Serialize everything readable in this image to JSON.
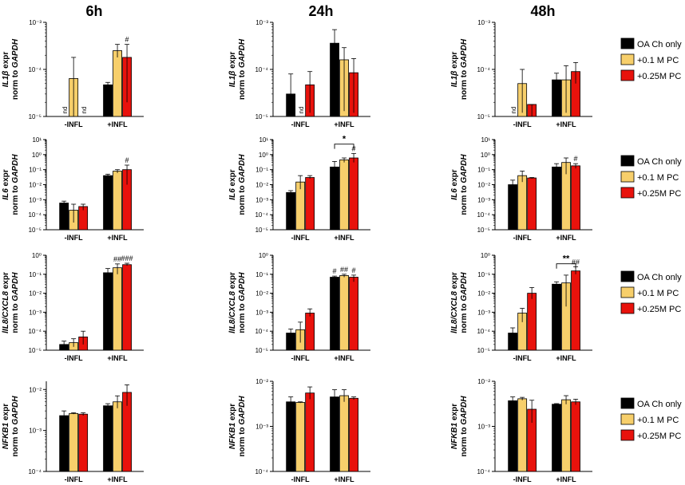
{
  "time_labels": [
    "6h",
    "24h",
    "48h"
  ],
  "categories": [
    "-INFL",
    "+INFL"
  ],
  "legend": {
    "items": [
      {
        "label": "OA Ch only",
        "color": "#000000"
      },
      {
        "label": "+0.1 M PC",
        "color": "#f7cf6b"
      },
      {
        "label": "+0.25M PC",
        "color": "#e8120c"
      }
    ]
  },
  "row_labels": [
    {
      "gene": "IL1β",
      "line1": "expr",
      "line2_prefix": "norm to ",
      "line2_gene": "GAPDH"
    },
    {
      "gene": "IL6",
      "line1": "expr",
      "line2_prefix": "norm to ",
      "line2_gene": "GAPDH"
    },
    {
      "gene": "lIL8/CXCL8",
      "line1": "expr",
      "line2_prefix": "norm to ",
      "line2_gene": "GAPDH"
    },
    {
      "gene": "NFKB1",
      "line1": "expr",
      "line2_prefix": "norm to ",
      "line2_gene": "GAPDH"
    }
  ],
  "chart_data": [
    {
      "type": "bar",
      "row": 0,
      "col": 0,
      "yscale": "log",
      "ylim_exp": [
        -5,
        -3
      ],
      "ticks": [
        {
          "exp": -5,
          "label": "10⁻⁵"
        },
        {
          "exp": -4,
          "label": "10⁻⁴"
        },
        {
          "exp": -3,
          "label": "10⁻³"
        }
      ],
      "series": [
        {
          "name": "OA Ch only",
          "values": [
            null,
            4.7e-05
          ],
          "err_hi": [
            null,
            5.3e-05
          ],
          "err_lo": [
            null,
            4.2e-05
          ]
        },
        {
          "name": "+0.1 M PC",
          "values": [
            6.4e-05,
            0.00025
          ],
          "err_hi": [
            0.00018,
            0.00034
          ],
          "err_lo": [
            1e-05,
            0.00018
          ]
        },
        {
          "name": "+0.25M PC",
          "values": [
            null,
            0.00018
          ],
          "err_hi": [
            null,
            0.00034
          ],
          "err_lo": [
            null,
            2e-05
          ]
        }
      ],
      "annotations": [
        {
          "group": 0,
          "series": 0,
          "text": "nd"
        },
        {
          "group": 0,
          "series": 2,
          "text": "nd"
        },
        {
          "group": 1,
          "series": 2,
          "text": "#"
        }
      ]
    },
    {
      "type": "bar",
      "row": 0,
      "col": 1,
      "yscale": "log",
      "ylim_exp": [
        -5,
        -3
      ],
      "ticks": [
        {
          "exp": -5,
          "label": "10⁻⁵"
        },
        {
          "exp": -4,
          "label": "10⁻⁴"
        },
        {
          "exp": -3,
          "label": "10⁻³"
        }
      ],
      "series": [
        {
          "name": "OA Ch only",
          "values": [
            3e-05,
            0.00036
          ],
          "err_hi": [
            8e-05,
            0.0007
          ],
          "err_lo": [
            1e-05,
            2e-05
          ]
        },
        {
          "name": "+0.1 M PC",
          "values": [
            null,
            0.00016
          ],
          "err_hi": [
            null,
            0.00029
          ],
          "err_lo": [
            null,
            1.3e-05
          ]
        },
        {
          "name": "+0.25M PC",
          "values": [
            4.7e-05,
            8.5e-05
          ],
          "err_hi": [
            9e-05,
            0.00017
          ],
          "err_lo": [
            1.2e-05,
            1.2e-05
          ]
        }
      ],
      "annotations": [
        {
          "group": 0,
          "series": 1,
          "text": "nd"
        }
      ]
    },
    {
      "type": "bar",
      "row": 0,
      "col": 2,
      "yscale": "log",
      "ylim_exp": [
        -5,
        -3
      ],
      "ticks": [
        {
          "exp": -5,
          "label": "10⁻⁵"
        },
        {
          "exp": -4,
          "label": "10⁻⁴"
        },
        {
          "exp": -3,
          "label": "10⁻³"
        }
      ],
      "series": [
        {
          "name": "OA Ch only",
          "values": [
            null,
            6e-05
          ],
          "err_hi": [
            null,
            8.3e-05
          ],
          "err_lo": [
            null,
            1.2e-05
          ]
        },
        {
          "name": "+0.1 M PC",
          "values": [
            5e-05,
            6e-05
          ],
          "err_hi": [
            0.0001,
            0.00012
          ],
          "err_lo": [
            1.2e-05,
            1.2e-05
          ]
        },
        {
          "name": "+0.25M PC",
          "values": [
            1.8e-05,
            9e-05
          ],
          "err_hi": [
            1.8e-05,
            0.00014
          ],
          "err_lo": [
            1e-05,
            5e-05
          ]
        }
      ],
      "annotations": [
        {
          "group": 0,
          "series": 0,
          "text": "nd"
        }
      ]
    },
    {
      "type": "bar",
      "row": 1,
      "col": 0,
      "yscale": "log",
      "ylim_exp": [
        -5,
        1
      ],
      "ticks": [
        {
          "exp": -5,
          "label": "10⁻⁵"
        },
        {
          "exp": -4,
          "label": "10⁻⁴"
        },
        {
          "exp": -3,
          "label": "10⁻³"
        },
        {
          "exp": -2,
          "label": "10⁻²"
        },
        {
          "exp": -1,
          "label": "10⁻¹"
        },
        {
          "exp": 0,
          "label": "10⁰"
        },
        {
          "exp": 1,
          "label": "10¹"
        }
      ],
      "series": [
        {
          "name": "OA Ch only",
          "values": [
            0.0006,
            0.04
          ],
          "err_hi": [
            0.0008,
            0.05
          ],
          "err_lo": [
            0.0004,
            0.03
          ]
        },
        {
          "name": "+0.1 M PC",
          "values": [
            0.0002,
            0.08
          ],
          "err_hi": [
            0.0005,
            0.1
          ],
          "err_lo": [
            3e-05,
            0.06
          ]
        },
        {
          "name": "+0.25M PC",
          "values": [
            0.00035,
            0.1
          ],
          "err_hi": [
            0.0005,
            0.2
          ],
          "err_lo": [
            0.0002,
            0.01
          ]
        }
      ],
      "annotations": [
        {
          "group": 1,
          "series": 2,
          "text": "#"
        }
      ]
    },
    {
      "type": "bar",
      "row": 1,
      "col": 1,
      "yscale": "log",
      "ylim_exp": [
        -5,
        1
      ],
      "ticks": [
        {
          "exp": -5,
          "label": "10⁻⁵"
        },
        {
          "exp": -4,
          "label": "10⁻⁴"
        },
        {
          "exp": -3,
          "label": "10⁻³"
        },
        {
          "exp": -2,
          "label": "10⁻²"
        },
        {
          "exp": -1,
          "label": "10⁻¹"
        },
        {
          "exp": 0,
          "label": "10⁰"
        },
        {
          "exp": 1,
          "label": "10¹"
        }
      ],
      "series": [
        {
          "name": "OA Ch only",
          "values": [
            0.003,
            0.15
          ],
          "err_hi": [
            0.004,
            0.35
          ],
          "err_lo": [
            0.0022,
            0.06
          ]
        },
        {
          "name": "+0.1 M PC",
          "values": [
            0.015,
            0.45
          ],
          "err_hi": [
            0.04,
            0.6
          ],
          "err_lo": [
            0.005,
            0.3
          ]
        },
        {
          "name": "+0.25M PC",
          "values": [
            0.03,
            0.6
          ],
          "err_hi": [
            0.04,
            1.2
          ],
          "err_lo": [
            0.025,
            0.3
          ]
        }
      ],
      "annotations": [
        {
          "group": 1,
          "series": 2,
          "text": "#"
        }
      ],
      "brackets": [
        {
          "from": {
            "group": 1,
            "series": 0
          },
          "to": {
            "group": 1,
            "series": 2
          },
          "text": "*",
          "at_exp": 0.7
        }
      ]
    },
    {
      "type": "bar",
      "row": 1,
      "col": 2,
      "yscale": "log",
      "ylim_exp": [
        -5,
        1
      ],
      "ticks": [
        {
          "exp": -5,
          "label": "10⁻⁵"
        },
        {
          "exp": -4,
          "label": "10⁻⁴"
        },
        {
          "exp": -3,
          "label": "10⁻³"
        },
        {
          "exp": -2,
          "label": "10⁻²"
        },
        {
          "exp": -1,
          "label": "10⁻¹"
        },
        {
          "exp": 0,
          "label": "10⁰"
        },
        {
          "exp": 1,
          "label": "10¹"
        }
      ],
      "series": [
        {
          "name": "OA Ch only",
          "values": [
            0.01,
            0.15
          ],
          "err_hi": [
            0.02,
            0.25
          ],
          "err_lo": [
            0.005,
            0.1
          ]
        },
        {
          "name": "+0.1 M PC",
          "values": [
            0.04,
            0.3
          ],
          "err_hi": [
            0.08,
            0.6
          ],
          "err_lo": [
            0.015,
            0.05
          ]
        },
        {
          "name": "+0.25M PC",
          "values": [
            0.028,
            0.18
          ],
          "err_hi": [
            0.03,
            0.25
          ],
          "err_lo": [
            0.025,
            0.12
          ]
        }
      ],
      "annotations": [
        {
          "group": 1,
          "series": 2,
          "text": "#"
        }
      ]
    },
    {
      "type": "bar",
      "row": 2,
      "col": 0,
      "yscale": "log",
      "ylim_exp": [
        -5,
        0
      ],
      "ticks": [
        {
          "exp": -5,
          "label": "10⁻⁵"
        },
        {
          "exp": -4,
          "label": "10⁻⁴"
        },
        {
          "exp": -3,
          "label": "10⁻³"
        },
        {
          "exp": -2,
          "label": "10⁻²"
        },
        {
          "exp": -1,
          "label": "10⁻¹"
        },
        {
          "exp": 0,
          "label": "10⁰"
        }
      ],
      "series": [
        {
          "name": "OA Ch only",
          "values": [
            2e-05,
            0.12
          ],
          "err_hi": [
            3e-05,
            0.2
          ],
          "err_lo": [
            1.4e-05,
            0.06
          ]
        },
        {
          "name": "+0.1 M PC",
          "values": [
            2.5e-05,
            0.22
          ],
          "err_hi": [
            4e-05,
            0.35
          ],
          "err_lo": [
            1.5e-05,
            0.1
          ]
        },
        {
          "name": "+0.25M PC",
          "values": [
            5e-05,
            0.32
          ],
          "err_hi": [
            0.0001,
            0.38
          ],
          "err_lo": [
            2e-05,
            0.28
          ]
        }
      ],
      "annotations": [
        {
          "group": 1,
          "series": 1,
          "text": "##"
        },
        {
          "group": 1,
          "series": 2,
          "text": "###"
        }
      ]
    },
    {
      "type": "bar",
      "row": 2,
      "col": 1,
      "yscale": "log",
      "ylim_exp": [
        -5,
        0
      ],
      "ticks": [
        {
          "exp": -5,
          "label": "10⁻⁵"
        },
        {
          "exp": -4,
          "label": "10⁻⁴"
        },
        {
          "exp": -3,
          "label": "10⁻³"
        },
        {
          "exp": -2,
          "label": "10⁻²"
        },
        {
          "exp": -1,
          "label": "10⁻¹"
        },
        {
          "exp": 0,
          "label": "10⁰"
        }
      ],
      "series": [
        {
          "name": "OA Ch only",
          "values": [
            8e-05,
            0.07
          ],
          "err_hi": [
            0.00013,
            0.08
          ],
          "err_lo": [
            5e-05,
            0.06
          ]
        },
        {
          "name": "+0.1 M PC",
          "values": [
            0.00012,
            0.085
          ],
          "err_hi": [
            0.0003,
            0.1
          ],
          "err_lo": [
            2.5e-05,
            0.07
          ]
        },
        {
          "name": "+0.25M PC",
          "values": [
            0.0009,
            0.07
          ],
          "err_hi": [
            0.0015,
            0.09
          ],
          "err_lo": [
            0.0006,
            0.04
          ]
        }
      ],
      "annotations": [
        {
          "group": 1,
          "series": 0,
          "text": "#"
        },
        {
          "group": 1,
          "series": 1,
          "text": "##"
        },
        {
          "group": 1,
          "series": 2,
          "text": "#"
        }
      ]
    },
    {
      "type": "bar",
      "row": 2,
      "col": 2,
      "yscale": "log",
      "ylim_exp": [
        -5,
        0
      ],
      "ticks": [
        {
          "exp": -5,
          "label": "10⁻⁵"
        },
        {
          "exp": -4,
          "label": "10⁻⁴"
        },
        {
          "exp": -3,
          "label": "10⁻³"
        },
        {
          "exp": -2,
          "label": "10⁻²"
        },
        {
          "exp": -1,
          "label": "10⁻¹"
        },
        {
          "exp": 0,
          "label": "10⁰"
        }
      ],
      "series": [
        {
          "name": "OA Ch only",
          "values": [
            8e-05,
            0.03
          ],
          "err_hi": [
            0.00015,
            0.04
          ],
          "err_lo": [
            4e-05,
            0.02
          ]
        },
        {
          "name": "+0.1 M PC",
          "values": [
            0.0009,
            0.035
          ],
          "err_hi": [
            0.0016,
            0.09
          ],
          "err_lo": [
            0.0003,
            0.002
          ]
        },
        {
          "name": "+0.25M PC",
          "values": [
            0.01,
            0.15
          ],
          "err_hi": [
            0.02,
            0.25
          ],
          "err_lo": [
            0.005,
            0.1
          ]
        }
      ],
      "annotations": [
        {
          "group": 1,
          "series": 2,
          "text": "##"
        }
      ],
      "brackets": [
        {
          "from": {
            "group": 1,
            "series": 0
          },
          "to": {
            "group": 1,
            "series": 2
          },
          "text": "**",
          "at_exp": -0.45
        }
      ]
    },
    {
      "type": "bar",
      "row": 3,
      "col": 0,
      "yscale": "log",
      "ylim_exp": [
        -4,
        -1.8
      ],
      "ticks": [
        {
          "exp": -4,
          "label": "10⁻⁴"
        },
        {
          "exp": -3,
          "label": "10⁻³"
        },
        {
          "exp": -2,
          "label": "10⁻²"
        }
      ],
      "series": [
        {
          "name": "OA Ch only",
          "values": [
            0.0023,
            0.004
          ],
          "err_hi": [
            0.003,
            0.0045
          ],
          "err_lo": [
            0.0018,
            0.0036
          ]
        },
        {
          "name": "+0.1 M PC",
          "values": [
            0.0026,
            0.005
          ],
          "err_hi": [
            0.0027,
            0.007
          ],
          "err_lo": [
            0.0025,
            0.0035
          ]
        },
        {
          "name": "+0.25M PC",
          "values": [
            0.0025,
            0.0085
          ],
          "err_hi": [
            0.0027,
            0.013
          ],
          "err_lo": [
            0.0023,
            0.004
          ]
        }
      ],
      "annotations": []
    },
    {
      "type": "bar",
      "row": 3,
      "col": 1,
      "yscale": "log",
      "ylim_exp": [
        -4,
        -2
      ],
      "ticks": [
        {
          "exp": -4,
          "label": "10⁻⁴"
        },
        {
          "exp": -3,
          "label": "10⁻³"
        },
        {
          "exp": -2,
          "label": "10⁻²"
        }
      ],
      "series": [
        {
          "name": "OA Ch only",
          "values": [
            0.0035,
            0.0045
          ],
          "err_hi": [
            0.0045,
            0.0065
          ],
          "err_lo": [
            0.0028,
            0.0032
          ]
        },
        {
          "name": "+0.1 M PC",
          "values": [
            0.0034,
            0.0048
          ],
          "err_hi": [
            0.0035,
            0.0065
          ],
          "err_lo": [
            0.0033,
            0.0035
          ]
        },
        {
          "name": "+0.25M PC",
          "values": [
            0.0055,
            0.0042
          ],
          "err_hi": [
            0.0075,
            0.0045
          ],
          "err_lo": [
            0.004,
            0.0039
          ]
        }
      ],
      "annotations": []
    },
    {
      "type": "bar",
      "row": 3,
      "col": 2,
      "yscale": "log",
      "ylim_exp": [
        -4,
        -2
      ],
      "ticks": [
        {
          "exp": -4,
          "label": "10⁻⁴"
        },
        {
          "exp": -3,
          "label": "10⁻³"
        },
        {
          "exp": -2,
          "label": "10⁻²"
        }
      ],
      "series": [
        {
          "name": "OA Ch only",
          "values": [
            0.0037,
            0.0031
          ],
          "err_hi": [
            0.0045,
            0.0032
          ],
          "err_lo": [
            0.003,
            0.003
          ]
        },
        {
          "name": "+0.1 M PC",
          "values": [
            0.0041,
            0.0039
          ],
          "err_hi": [
            0.0044,
            0.0048
          ],
          "err_lo": [
            0.0038,
            0.0031
          ]
        },
        {
          "name": "+0.25M PC",
          "values": [
            0.0024,
            0.0035
          ],
          "err_hi": [
            0.0038,
            0.004
          ],
          "err_lo": [
            0.0012,
            0.003
          ]
        }
      ],
      "annotations": []
    }
  ]
}
